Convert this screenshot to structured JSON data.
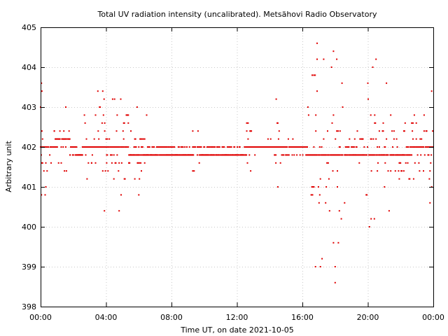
{
  "chart_data": {
    "type": "scatter",
    "title": "Total UV radiation intensity (uncalibrated). Metsähovi Radio Observatory",
    "xlabel": "Time UT, on date 2021-10-05",
    "ylabel": "Arbitrary unit",
    "xlim": [
      0,
      24
    ],
    "ylim": [
      398,
      405
    ],
    "x_ticks": [
      "00:00",
      "04:00",
      "08:00",
      "12:00",
      "16:00",
      "20:00",
      "00:00"
    ],
    "y_ticks": [
      "398",
      "399",
      "400",
      "401",
      "402",
      "403",
      "404",
      "405"
    ],
    "grid": true,
    "marker_color": "#e00000",
    "level_step": 0.2,
    "segments": [
      {
        "x_start": 0.0,
        "x_end": 0.9,
        "center": 402.0,
        "spread": 0.6,
        "max_dev": 1.6,
        "density": 0.55
      },
      {
        "x_start": 0.9,
        "x_end": 1.8,
        "center": 402.1,
        "spread": 0.5,
        "max_dev": 0.9,
        "density": 0.5
      },
      {
        "x_start": 1.8,
        "x_end": 2.6,
        "center": 401.9,
        "spread": 0.1,
        "max_dev": 0.3,
        "density": 0.9
      },
      {
        "x_start": 2.6,
        "x_end": 5.4,
        "center": 402.0,
        "spread": 0.6,
        "max_dev": 1.6,
        "density": 0.55
      },
      {
        "x_start": 5.4,
        "x_end": 6.5,
        "center": 401.9,
        "spread": 0.35,
        "max_dev": 1.1,
        "density": 0.6
      },
      {
        "x_start": 6.5,
        "x_end": 9.3,
        "center": 401.9,
        "spread": 0.05,
        "max_dev": 0.2,
        "density": 1.0
      },
      {
        "x_start": 9.3,
        "x_end": 9.7,
        "center": 402.0,
        "spread": 0.3,
        "max_dev": 0.6,
        "density": 0.7
      },
      {
        "x_start": 9.7,
        "x_end": 12.6,
        "center": 401.9,
        "spread": 0.05,
        "max_dev": 0.2,
        "density": 1.0
      },
      {
        "x_start": 12.6,
        "x_end": 12.9,
        "center": 402.0,
        "spread": 0.3,
        "max_dev": 0.8,
        "density": 0.7
      },
      {
        "x_start": 12.9,
        "x_end": 14.3,
        "center": 402.0,
        "spread": 0.08,
        "max_dev": 0.2,
        "density": 1.0
      },
      {
        "x_start": 14.3,
        "x_end": 14.7,
        "center": 402.0,
        "spread": 0.4,
        "max_dev": 1.2,
        "density": 0.7
      },
      {
        "x_start": 14.7,
        "x_end": 16.3,
        "center": 401.95,
        "spread": 0.1,
        "max_dev": 0.3,
        "density": 0.95
      },
      {
        "x_start": 16.3,
        "x_end": 18.6,
        "center": 401.9,
        "spread": 1.0,
        "max_dev": 3.4,
        "density": 0.5
      },
      {
        "x_start": 18.6,
        "x_end": 19.7,
        "center": 401.9,
        "spread": 0.2,
        "max_dev": 0.5,
        "density": 0.8
      },
      {
        "x_start": 19.7,
        "x_end": 21.2,
        "center": 401.9,
        "spread": 0.6,
        "max_dev": 2.0,
        "density": 0.55
      },
      {
        "x_start": 21.2,
        "x_end": 22.6,
        "center": 401.8,
        "spread": 0.45,
        "max_dev": 1.3,
        "density": 0.6
      },
      {
        "x_start": 22.6,
        "x_end": 24.0,
        "center": 402.0,
        "spread": 0.4,
        "max_dev": 1.4,
        "density": 0.6
      }
    ],
    "outliers": [
      {
        "x": 0.05,
        "y": 403.6
      },
      {
        "x": 0.08,
        "y": 403.4
      },
      {
        "x": 0.05,
        "y": 400.8
      },
      {
        "x": 3.5,
        "y": 403.4
      },
      {
        "x": 3.8,
        "y": 403.4
      },
      {
        "x": 3.9,
        "y": 400.4
      },
      {
        "x": 4.8,
        "y": 400.4
      },
      {
        "x": 4.9,
        "y": 403.2
      },
      {
        "x": 5.9,
        "y": 403.0
      },
      {
        "x": 6.0,
        "y": 400.8
      },
      {
        "x": 14.4,
        "y": 403.2
      },
      {
        "x": 14.5,
        "y": 401.0
      },
      {
        "x": 16.6,
        "y": 403.8
      },
      {
        "x": 16.7,
        "y": 403.8
      },
      {
        "x": 16.9,
        "y": 404.6
      },
      {
        "x": 17.3,
        "y": 404.2
      },
      {
        "x": 17.9,
        "y": 404.4
      },
      {
        "x": 18.1,
        "y": 404.2
      },
      {
        "x": 16.8,
        "y": 399.0
      },
      {
        "x": 17.1,
        "y": 399.0
      },
      {
        "x": 17.2,
        "y": 399.2
      },
      {
        "x": 17.9,
        "y": 399.6
      },
      {
        "x": 18.0,
        "y": 398.6
      },
      {
        "x": 18.2,
        "y": 399.6
      },
      {
        "x": 18.0,
        "y": 399.0
      },
      {
        "x": 20.0,
        "y": 403.6
      },
      {
        "x": 20.5,
        "y": 404.2
      },
      {
        "x": 20.3,
        "y": 404.0
      },
      {
        "x": 20.1,
        "y": 400.0
      },
      {
        "x": 20.2,
        "y": 400.2
      },
      {
        "x": 20.4,
        "y": 400.2
      },
      {
        "x": 21.3,
        "y": 400.4
      },
      {
        "x": 23.9,
        "y": 403.4
      },
      {
        "x": 23.8,
        "y": 400.6
      },
      {
        "x": 23.9,
        "y": 401.0
      }
    ]
  }
}
